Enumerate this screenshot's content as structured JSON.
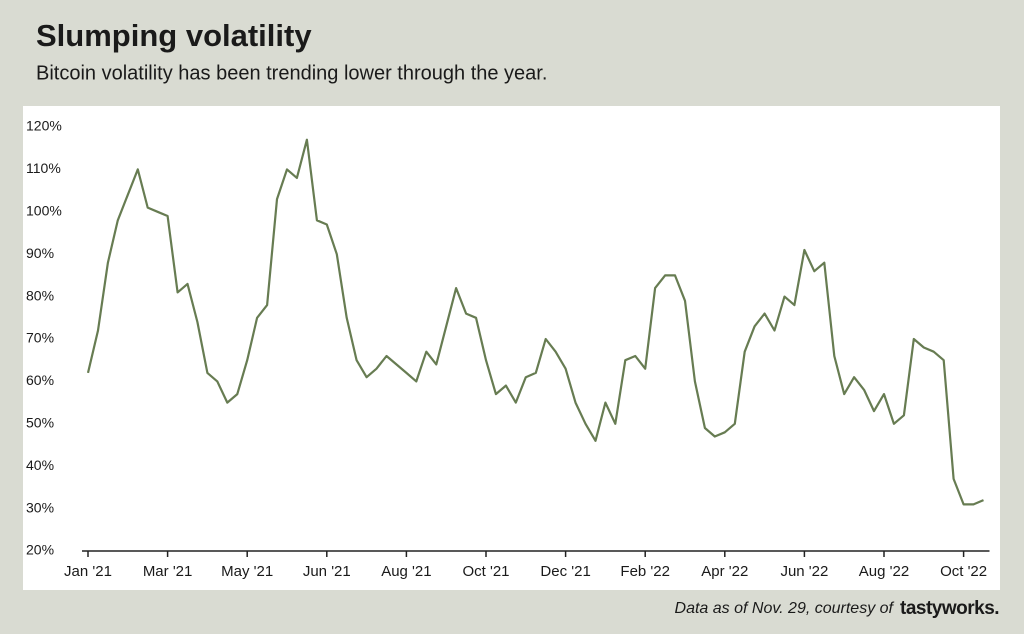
{
  "chart_data": {
    "type": "line",
    "title": "Slumping volatility",
    "subtitle": "Bitcoin volatility has been trending lower through the year.",
    "source": "Data as of Nov. 29, courtesy of",
    "brand": "tastyworks.",
    "color": "#677c52",
    "ylim": [
      20,
      120
    ],
    "yticks": [
      {
        "value": 20,
        "label": "20%"
      },
      {
        "value": 30,
        "label": "30%"
      },
      {
        "value": 40,
        "label": "40%"
      },
      {
        "value": 50,
        "label": "50%"
      },
      {
        "value": 60,
        "label": "60%"
      },
      {
        "value": 70,
        "label": "70%"
      },
      {
        "value": 80,
        "label": "80%"
      },
      {
        "value": 90,
        "label": "90%"
      },
      {
        "value": 100,
        "label": "100%"
      },
      {
        "value": 110,
        "label": "110%"
      },
      {
        "value": 120,
        "label": "120%"
      }
    ],
    "categories": [
      "Jan '21",
      null,
      null,
      null,
      null,
      null,
      null,
      null,
      "Mar '21",
      null,
      null,
      null,
      null,
      null,
      null,
      null,
      "May '21",
      null,
      null,
      null,
      null,
      null,
      null,
      null,
      "Jun '21",
      null,
      null,
      null,
      null,
      null,
      null,
      null,
      "Aug '21",
      null,
      null,
      null,
      null,
      null,
      null,
      null,
      "Oct '21",
      null,
      null,
      null,
      null,
      null,
      null,
      null,
      "Dec '21",
      null,
      null,
      null,
      null,
      null,
      null,
      null,
      "Feb '22",
      null,
      null,
      null,
      null,
      null,
      null,
      null,
      "Apr '22",
      null,
      null,
      null,
      null,
      null,
      null,
      null,
      "Jun '22",
      null,
      null,
      null,
      null,
      null,
      null,
      null,
      "Aug '22",
      null,
      null,
      null,
      null,
      null,
      null,
      null,
      "Oct '22",
      null,
      null
    ],
    "values": [
      62,
      72,
      88,
      98,
      104,
      110,
      101,
      100,
      99,
      81,
      83,
      74,
      62,
      60,
      55,
      57,
      65,
      75,
      78,
      103,
      110,
      108,
      117,
      98,
      97,
      90,
      75,
      65,
      61,
      63,
      66,
      64,
      62,
      60,
      67,
      64,
      73,
      82,
      76,
      75,
      65,
      57,
      59,
      55,
      61,
      62,
      70,
      67,
      63,
      55,
      50,
      46,
      55,
      50,
      65,
      66,
      63,
      82,
      85,
      85,
      79,
      60,
      49,
      47,
      48,
      50,
      67,
      73,
      76,
      72,
      80,
      78,
      91,
      86,
      88,
      66,
      57,
      61,
      58,
      53,
      57,
      50,
      52,
      70,
      68,
      67,
      65,
      37,
      31,
      31,
      32
    ]
  }
}
